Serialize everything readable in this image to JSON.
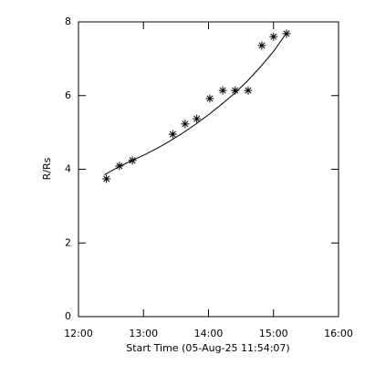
{
  "chart_data": {
    "type": "scatter",
    "x_label": "Start Time (05-Aug-25 11:54:07)",
    "y_label": "R/Rs",
    "xlim": [
      12,
      16
    ],
    "xticks": [
      {
        "value": 12,
        "label": "12:00"
      },
      {
        "value": 13,
        "label": "13:00"
      },
      {
        "value": 14,
        "label": "14:00"
      },
      {
        "value": 15,
        "label": "15:00"
      },
      {
        "value": 16,
        "label": "16:00"
      }
    ],
    "ylim": [
      0,
      8
    ],
    "yticks": [
      0,
      2,
      4,
      6,
      8
    ],
    "series": [
      {
        "color": "#000000",
        "marker": "asterisk",
        "x": [
          12.43,
          12.63,
          12.83,
          13.45,
          13.64,
          13.82,
          14.02,
          14.22,
          14.41,
          14.61,
          14.82,
          15.0,
          15.2
        ],
        "values": [
          3.74,
          4.09,
          4.24,
          4.95,
          5.23,
          5.37,
          5.92,
          6.14,
          6.14,
          6.14,
          7.36,
          7.6,
          7.68
        ]
      },
      {
        "color": "#000000",
        "marker": "line",
        "x": [
          12.4,
          12.6,
          12.8,
          13.0,
          13.2,
          13.4,
          13.6,
          13.8,
          14.0,
          14.2,
          14.4,
          14.6,
          14.8,
          15.0,
          15.2
        ],
        "values": [
          3.85,
          4.05,
          4.22,
          4.38,
          4.56,
          4.76,
          4.98,
          5.22,
          5.48,
          5.76,
          6.06,
          6.4,
          6.78,
          7.2,
          7.7
        ]
      }
    ]
  }
}
